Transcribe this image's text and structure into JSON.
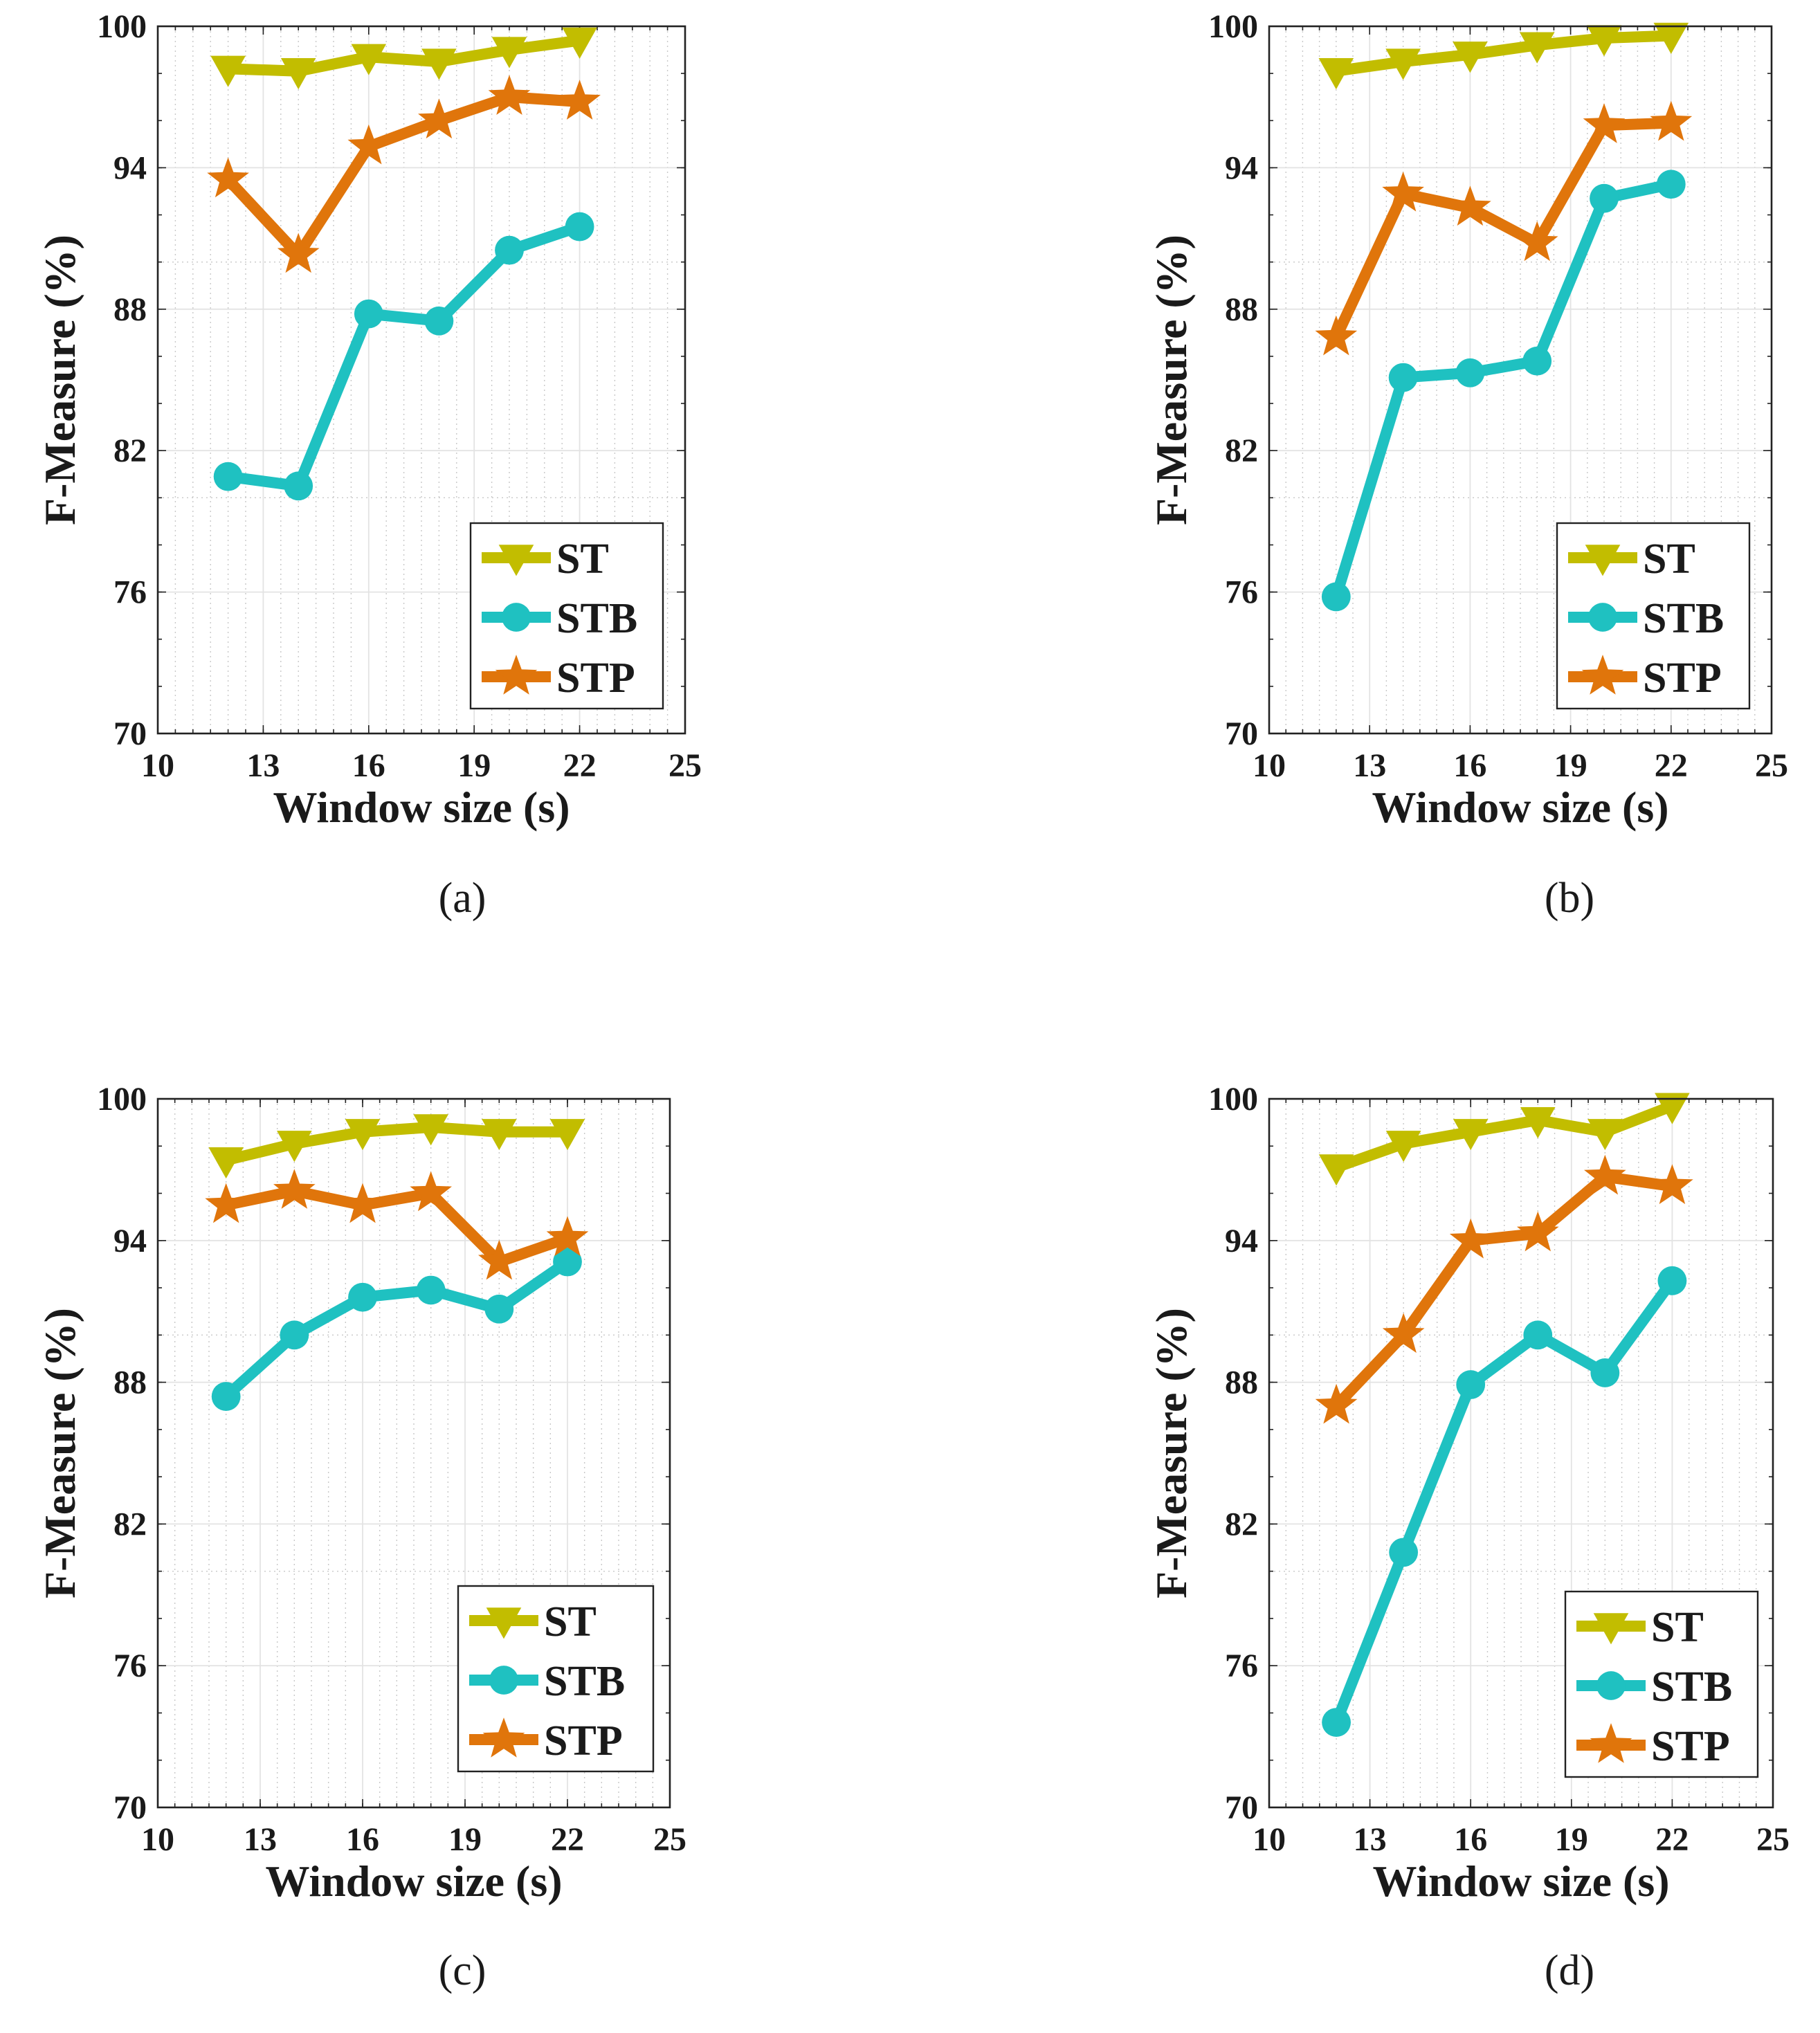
{
  "chart_data": [
    {
      "type": "line",
      "caption": "(a)",
      "xlabel": "Window size (s)",
      "ylabel": "F-Measure (%)",
      "xlim": [
        10,
        25
      ],
      "ylim": [
        70,
        100
      ],
      "xticks": [
        10,
        13,
        16,
        19,
        22,
        25
      ],
      "yticks": [
        70,
        76,
        82,
        88,
        94,
        100
      ],
      "grid": true,
      "minor_grid": true,
      "legend_position": "bottom-right",
      "x": [
        12,
        14,
        16,
        18,
        20,
        22
      ],
      "series": [
        {
          "name": "ST",
          "marker": "triangle-down",
          "color": "#c2bd00",
          "values": [
            98.2,
            98.1,
            98.7,
            98.5,
            99.0,
            99.4
          ]
        },
        {
          "name": "STB",
          "marker": "circle",
          "color": "#1fc1c1",
          "values": [
            80.9,
            80.5,
            87.8,
            87.5,
            90.5,
            91.5
          ]
        },
        {
          "name": "STP",
          "marker": "star",
          "color": "#e0750b",
          "values": [
            93.5,
            90.3,
            94.9,
            96.0,
            97.0,
            96.8
          ]
        }
      ]
    },
    {
      "type": "line",
      "caption": "(b)",
      "xlabel": "Window size (s)",
      "ylabel": "F-Measure (%)",
      "xlim": [
        10,
        25
      ],
      "ylim": [
        70,
        100
      ],
      "xticks": [
        10,
        13,
        16,
        19,
        22,
        25
      ],
      "yticks": [
        70,
        76,
        82,
        88,
        94,
        100
      ],
      "grid": true,
      "minor_grid": true,
      "legend_position": "bottom-right",
      "x": [
        12,
        14,
        16,
        18,
        20,
        22
      ],
      "series": [
        {
          "name": "ST",
          "marker": "triangle-down",
          "color": "#c2bd00",
          "values": [
            98.1,
            98.5,
            98.8,
            99.2,
            99.5,
            99.6
          ]
        },
        {
          "name": "STB",
          "marker": "circle",
          "color": "#1fc1c1",
          "values": [
            75.8,
            85.1,
            85.3,
            85.8,
            92.7,
            93.3
          ]
        },
        {
          "name": "STP",
          "marker": "star",
          "color": "#e0750b",
          "values": [
            86.8,
            92.9,
            92.3,
            90.8,
            95.8,
            95.9
          ]
        }
      ]
    },
    {
      "type": "line",
      "caption": "(c)",
      "xlabel": "Window size (s)",
      "ylabel": "F-Measure (%)",
      "xlim": [
        10,
        25
      ],
      "ylim": [
        70,
        100
      ],
      "xticks": [
        10,
        13,
        16,
        19,
        22,
        25
      ],
      "yticks": [
        70,
        76,
        82,
        88,
        94,
        100
      ],
      "grid": true,
      "minor_grid": true,
      "legend_position": "bottom-right",
      "x": [
        12,
        14,
        16,
        18,
        20,
        22
      ],
      "series": [
        {
          "name": "ST",
          "marker": "triangle-down",
          "color": "#c2bd00",
          "values": [
            97.4,
            98.1,
            98.6,
            98.8,
            98.6,
            98.6
          ]
        },
        {
          "name": "STB",
          "marker": "circle",
          "color": "#1fc1c1",
          "values": [
            87.4,
            90.0,
            91.6,
            91.9,
            91.1,
            93.1
          ]
        },
        {
          "name": "STP",
          "marker": "star",
          "color": "#e0750b",
          "values": [
            95.5,
            96.1,
            95.5,
            96.0,
            93.1,
            94.1
          ]
        }
      ]
    },
    {
      "type": "line",
      "caption": "(d)",
      "xlabel": "Window size (s)",
      "ylabel": "F-Measure (%)",
      "xlim": [
        10,
        25
      ],
      "ylim": [
        70,
        100
      ],
      "xticks": [
        10,
        13,
        16,
        19,
        22,
        25
      ],
      "yticks": [
        70,
        76,
        82,
        88,
        94,
        100
      ],
      "grid": true,
      "minor_grid": true,
      "legend_position": "bottom-right",
      "x": [
        12,
        14,
        16,
        18,
        20,
        22
      ],
      "series": [
        {
          "name": "ST",
          "marker": "triangle-down",
          "color": "#c2bd00",
          "values": [
            97.1,
            98.1,
            98.6,
            99.1,
            98.6,
            99.7
          ]
        },
        {
          "name": "STB",
          "marker": "circle",
          "color": "#1fc1c1",
          "values": [
            73.6,
            80.8,
            87.9,
            90.0,
            88.4,
            92.3
          ]
        },
        {
          "name": "STP",
          "marker": "star",
          "color": "#e0750b",
          "values": [
            87.0,
            90.0,
            94.0,
            94.3,
            96.7,
            96.3
          ]
        }
      ]
    }
  ]
}
